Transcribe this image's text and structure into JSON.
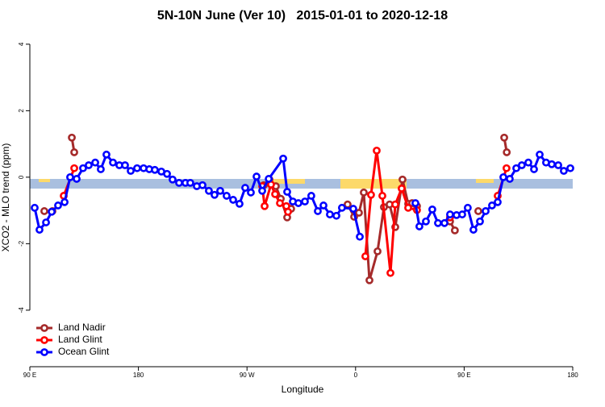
{
  "chart_data": {
    "type": "line",
    "title": "5N-10N June (Ver 10)   2015-01-01 to 2020-12-18",
    "xlabel": "Longitude",
    "ylabel": "XCO2 - MLO trend (ppm)",
    "xlim": [
      90,
      540
    ],
    "ylim": [
      -5.7,
      4.36
    ],
    "xticks": [
      {
        "value": 90,
        "label": "90 E"
      },
      {
        "value": 180,
        "label": "180"
      },
      {
        "value": 270,
        "label": "90 W"
      },
      {
        "value": 360,
        "label": "0"
      },
      {
        "value": 450,
        "label": "90 E"
      },
      {
        "value": 540,
        "label": "180"
      }
    ],
    "yticks": [
      -4,
      -2,
      0,
      2,
      4
    ],
    "legend": "bottom-left",
    "series": [
      {
        "name": "Land Nadir",
        "color": "#a52a2a",
        "x": [
          102.0,
          108.7,
          null,
          124.8,
          126.8,
          null,
          283.9,
          288.6,
          293.9,
          298.0,
          303.3,
          306.6,
          null,
          353.4,
          358.8,
          362.8,
          366.8,
          371.5,
          378.2,
          383.5,
          388.2,
          392.9,
          398.9,
          403.6,
          406.9,
          410.9,
          null,
          438.3,
          442.3,
          null,
          461.7,
          null,
          483.2,
          485.3
        ],
        "values": [
          -1.02,
          -1.02,
          null,
          1.19,
          0.75,
          null,
          -0.24,
          -0.07,
          -0.27,
          -0.65,
          -1.21,
          -0.95,
          null,
          -0.82,
          -1.19,
          -1.07,
          -0.46,
          -3.1,
          -2.23,
          -0.9,
          -0.82,
          -1.5,
          -0.07,
          -0.8,
          -0.78,
          -0.87,
          null,
          -1.33,
          -1.6,
          null,
          -1.02,
          null,
          1.19,
          0.75
        ]
      },
      {
        "name": "Land Glint",
        "color": "#ff0000",
        "x": [
          118.1,
          126.8,
          null,
          282.6,
          284.6,
          289.9,
          293.3,
          297.3,
          302.6,
          304.0,
          null,
          368.1,
          372.8,
          377.5,
          382.2,
          388.9,
          392.9,
          398.2,
          403.6,
          410.9,
          null,
          438.3,
          null,
          477.8,
          485.1
        ],
        "values": [
          -0.56,
          0.27,
          null,
          -0.27,
          -0.87,
          -0.22,
          -0.51,
          -0.78,
          -0.87,
          -1.04,
          null,
          -2.38,
          -0.53,
          0.8,
          -0.56,
          -2.88,
          -0.82,
          -0.34,
          -0.92,
          -0.99,
          null,
          -1.21,
          null,
          -0.56,
          0.27
        ]
      },
      {
        "name": "Ocean Glint",
        "color": "#0000ff",
        "x": [
          94.0,
          98.0,
          103.4,
          108.1,
          113.4,
          118.8,
          123.4,
          128.8,
          134.1,
          138.8,
          144.2,
          148.8,
          153.5,
          158.9,
          164.2,
          168.9,
          173.6,
          178.9,
          184.3,
          189.0,
          193.6,
          199.0,
          203.7,
          208.3,
          213.7,
          219.0,
          223.0,
          228.4,
          233.1,
          238.4,
          243.1,
          247.8,
          253.1,
          258.5,
          263.8,
          268.5,
          273.2,
          277.9,
          282.6,
          288.0,
          300.0,
          303.3,
          308.0,
          312.6,
          318.0,
          323.3,
          328.7,
          333.4,
          338.7,
          344.1,
          348.7,
          358.1,
          363.5,
          null,
          409.6,
          412.9,
          418.3,
          423.6,
          428.3,
          433.7,
          438.3,
          443.7,
          448.4,
          453.0,
          457.7,
          463.1,
          467.8,
          473.1,
          477.8,
          482.5,
          487.8,
          493.2,
          497.8,
          503.2,
          507.9,
          512.6,
          517.9,
          522.6,
          528.0,
          532.6,
          538.0
        ],
        "values": [
          -0.92,
          -1.58,
          -1.36,
          -1.04,
          -0.85,
          -0.75,
          0,
          -0.05,
          0.27,
          0.36,
          0.44,
          0.24,
          0.68,
          0.44,
          0.36,
          0.36,
          0.19,
          0.27,
          0.27,
          0.24,
          0.22,
          0.17,
          0.1,
          -0.07,
          -0.17,
          -0.17,
          -0.17,
          -0.27,
          -0.24,
          -0.41,
          -0.53,
          -0.41,
          -0.56,
          -0.68,
          -0.8,
          -0.32,
          -0.46,
          0.02,
          -0.41,
          -0.05,
          0.56,
          -0.44,
          -0.73,
          -0.78,
          -0.73,
          -0.56,
          -1.02,
          -0.85,
          -1.12,
          -1.16,
          -0.92,
          -0.95,
          -1.79,
          null,
          -0.78,
          -1.48,
          -1.33,
          -0.97,
          -1.38,
          -1.38,
          -1.12,
          -1.14,
          -1.12,
          -0.92,
          -1.58,
          -1.33,
          -1.02,
          -0.85,
          -0.75,
          0,
          -0.05,
          0.27,
          0.36,
          0.44,
          0.24,
          0.68,
          0.44,
          0.39,
          0.36,
          0.19,
          0.27
        ]
      }
    ]
  }
}
